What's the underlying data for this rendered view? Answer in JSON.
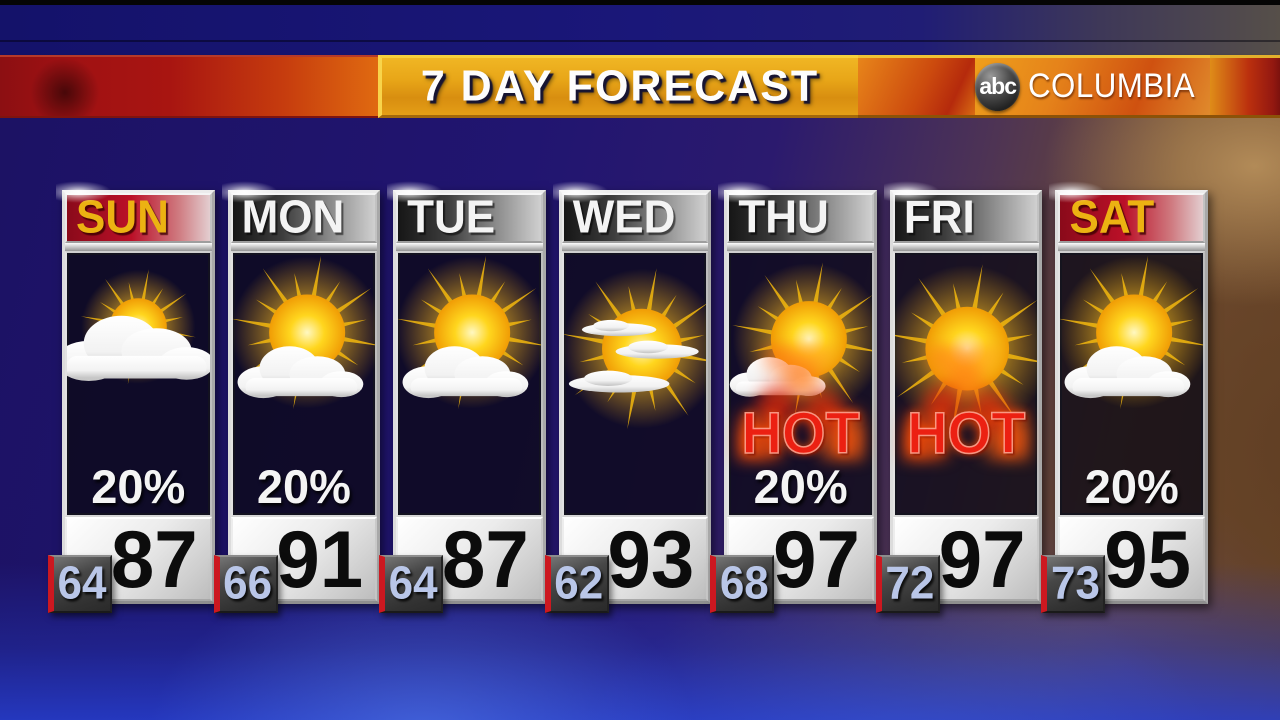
{
  "banner": {
    "title": "7 DAY FORECAST",
    "logo_abc": "abc",
    "station": "COLUMBIA"
  },
  "colors": {
    "banner_gold": "#e8a618",
    "banner_red": "#a81511",
    "weekend_header_red": "#bb1028",
    "weekend_label_gold": "#ecb212",
    "hot_red": "#ec2012",
    "low_stripe_red": "#cc1820",
    "low_text_blue": "#b9c6e8",
    "high_text_black": "#0c0c0c"
  },
  "days": [
    {
      "label": "SUN",
      "icon": "mostly-cloudy",
      "precip": "20%",
      "hot": false,
      "hot_label": "",
      "high": "87",
      "low": "64",
      "highlight": true
    },
    {
      "label": "MON",
      "icon": "partly-cloudy",
      "precip": "20%",
      "hot": false,
      "hot_label": "",
      "high": "91",
      "low": "66",
      "highlight": false
    },
    {
      "label": "TUE",
      "icon": "partly-cloudy",
      "precip": null,
      "hot": false,
      "hot_label": "",
      "high": "87",
      "low": "64",
      "highlight": false
    },
    {
      "label": "WED",
      "icon": "sun-thin-clouds",
      "precip": null,
      "hot": false,
      "hot_label": "",
      "high": "93",
      "low": "62",
      "highlight": false
    },
    {
      "label": "THU",
      "icon": "mostly-sunny",
      "precip": "20%",
      "hot": true,
      "hot_label": "HOT",
      "high": "97",
      "low": "68",
      "highlight": false
    },
    {
      "label": "FRI",
      "icon": "sunny",
      "precip": null,
      "hot": true,
      "hot_label": "HOT",
      "high": "97",
      "low": "72",
      "highlight": false
    },
    {
      "label": "SAT",
      "icon": "partly-cloudy",
      "precip": "20%",
      "hot": false,
      "hot_label": "",
      "high": "95",
      "low": "73",
      "highlight": true
    }
  ]
}
